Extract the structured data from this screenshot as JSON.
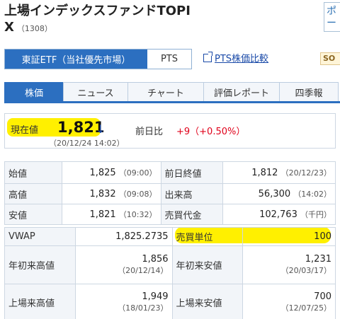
{
  "header": {
    "title": "上場インデックスファンドTOPI",
    "title_line2": "X",
    "code": "（1308）",
    "side_button_text": "ポ\nー"
  },
  "market_tabs": {
    "active": "東証ETF（当社優先市場）",
    "other": "PTS",
    "compare_link": "PTS株価比較",
    "badge": "SO"
  },
  "nav": {
    "tabs": [
      "株価",
      "ニュース",
      "チャート",
      "評価レポート",
      "四季報"
    ]
  },
  "price": {
    "label": "現在値",
    "value": "1,821",
    "arrow": "↓",
    "time": "（20/12/24 14:02）",
    "change_label": "前日比",
    "change_value": "+9（+0.50%）"
  },
  "quote_table": [
    {
      "l1": "始値",
      "v1": "1,825",
      "t1": "（09:00）",
      "l2": "前日終値",
      "v2": "1,812",
      "t2": "（20/12/23）"
    },
    {
      "l1": "高値",
      "v1": "1,832",
      "t1": "（09:08）",
      "l2": "出来高",
      "v2": "56,300",
      "t2": "（14:02）"
    },
    {
      "l1": "安値",
      "v1": "1,821",
      "t1": "（10:32）",
      "l2": "売買代金",
      "v2": "102,763",
      "t2": "（千円）"
    }
  ],
  "stats_table": {
    "vwap_label": "VWAP",
    "vwap_value": "1,825.2735",
    "unit_label": "売買単位",
    "unit_value": "100",
    "ytd_high_label": "年初来高値",
    "ytd_high_value": "1,856",
    "ytd_high_date": "（20/12/14）",
    "ytd_low_label": "年初来安値",
    "ytd_low_value": "1,231",
    "ytd_low_date": "（20/03/17）",
    "all_high_label": "上場来高値",
    "all_high_value": "1,949",
    "all_high_date": "（18/01/23）",
    "all_low_label": "上場来安値",
    "all_low_value": "700",
    "all_low_date": "（12/07/25）"
  },
  "colors": {
    "accent": "#2c6fc0",
    "up": "#e0001a",
    "highlight": "#fff000"
  }
}
